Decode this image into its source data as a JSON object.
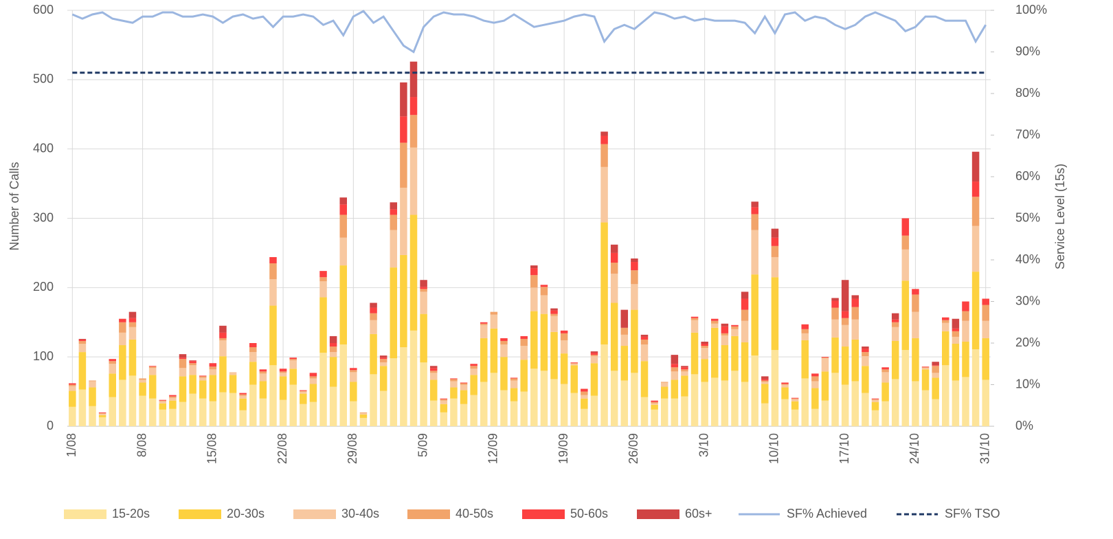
{
  "chart_data": {
    "type": "bar",
    "stacked": true,
    "ylabel": "Number of Calls",
    "y2label": "Service Level (15s)",
    "categories": [
      "1/08",
      null,
      null,
      null,
      null,
      null,
      null,
      "8/08",
      null,
      null,
      null,
      null,
      null,
      null,
      "15/08",
      null,
      null,
      null,
      null,
      null,
      null,
      "22/08",
      null,
      null,
      null,
      null,
      null,
      null,
      "29/08",
      null,
      null,
      null,
      null,
      null,
      null,
      "5/09",
      null,
      null,
      null,
      null,
      null,
      null,
      "12/09",
      null,
      null,
      null,
      null,
      null,
      null,
      "19/09",
      null,
      null,
      null,
      null,
      null,
      null,
      "26/09",
      null,
      null,
      null,
      null,
      null,
      null,
      "3/10",
      null,
      null,
      null,
      null,
      null,
      null,
      "10/10",
      null,
      null,
      null,
      null,
      null,
      null,
      "17/10",
      null,
      null,
      null,
      null,
      null,
      null,
      "24/10",
      null,
      null,
      null,
      null,
      null,
      null,
      "31/10"
    ],
    "ylim": [
      0,
      600
    ],
    "yticks": [
      0,
      100,
      200,
      300,
      400,
      500,
      600
    ],
    "y2lim": [
      0,
      100
    ],
    "y2ticks": [
      {
        "value": 0,
        "label": "0%"
      },
      {
        "value": 10,
        "label": "10%"
      },
      {
        "value": 20,
        "label": "20%"
      },
      {
        "value": 30,
        "label": "30%"
      },
      {
        "value": 40,
        "label": "40%"
      },
      {
        "value": 50,
        "label": "50%"
      },
      {
        "value": 60,
        "label": "60%"
      },
      {
        "value": 70,
        "label": "70%"
      },
      {
        "value": 80,
        "label": "80%"
      },
      {
        "value": 90,
        "label": "90%"
      },
      {
        "value": 100,
        "label": "100%"
      }
    ],
    "grid": true,
    "legend": "bottom",
    "series": [
      {
        "name": "15-20s",
        "color": "#fde49a",
        "values": [
          28,
          53,
          29,
          13,
          42,
          67,
          73,
          44,
          40,
          24,
          25,
          35,
          47,
          40,
          36,
          49,
          48,
          23,
          60,
          40,
          88,
          38,
          60,
          32,
          35,
          106,
          57,
          118,
          36,
          12,
          75,
          51,
          98,
          114,
          138,
          92,
          37,
          20,
          40,
          32,
          45,
          64,
          77,
          52,
          36,
          50,
          83,
          80,
          68,
          61,
          48,
          25,
          44,
          118,
          80,
          66,
          77,
          42,
          24,
          40,
          40,
          43,
          75,
          64,
          70,
          66,
          80,
          64,
          102,
          33,
          110,
          39,
          24,
          69,
          25,
          37,
          77,
          60,
          65,
          48,
          23,
          36,
          68,
          110,
          65,
          52,
          39,
          88,
          66,
          71,
          111,
          67
        ]
      },
      {
        "name": "20-30s",
        "color": "#fdd13f",
        "values": [
          23,
          54,
          27,
          3,
          34,
          50,
          52,
          19,
          34,
          9,
          12,
          37,
          27,
          26,
          38,
          52,
          26,
          17,
          33,
          25,
          86,
          34,
          23,
          15,
          26,
          80,
          43,
          114,
          28,
          5,
          58,
          36,
          131,
          133,
          167,
          70,
          30,
          12,
          16,
          20,
          29,
          63,
          64,
          48,
          19,
          46,
          83,
          82,
          68,
          44,
          40,
          15,
          47,
          176,
          98,
          50,
          91,
          52,
          7,
          17,
          27,
          30,
          60,
          33,
          72,
          51,
          50,
          57,
          117,
          28,
          105,
          17,
          12,
          55,
          30,
          42,
          51,
          55,
          60,
          39,
          12,
          27,
          55,
          100,
          62,
          30,
          31,
          49,
          53,
          51,
          112,
          60
        ]
      },
      {
        "name": "30-40s",
        "color": "#f8c8a0",
        "values": [
          7,
          12,
          9,
          2,
          14,
          18,
          18,
          4,
          10,
          3,
          4,
          12,
          14,
          4,
          8,
          23,
          4,
          4,
          14,
          11,
          38,
          5,
          12,
          3,
          8,
          23,
          7,
          40,
          14,
          2,
          20,
          5,
          54,
          97,
          97,
          32,
          10,
          5,
          9,
          8,
          9,
          19,
          20,
          18,
          11,
          20,
          34,
          27,
          23,
          19,
          2,
          5,
          10,
          80,
          42,
          16,
          37,
          24,
          2,
          6,
          12,
          6,
          18,
          16,
          6,
          14,
          10,
          31,
          64,
          3,
          29,
          4,
          3,
          10,
          10,
          19,
          26,
          31,
          29,
          14,
          3,
          15,
          20,
          45,
          38,
          2,
          7,
          12,
          10,
          30,
          66,
          25
        ]
      },
      {
        "name": "40-50s",
        "color": "#f2a46a",
        "values": [
          2,
          4,
          1,
          1,
          4,
          15,
          7,
          2,
          2,
          1,
          2,
          13,
          3,
          2,
          4,
          3,
          0,
          2,
          7,
          3,
          23,
          2,
          2,
          1,
          3,
          6,
          8,
          33,
          3,
          1,
          10,
          5,
          22,
          65,
          47,
          4,
          3,
          2,
          3,
          2,
          4,
          2,
          4,
          5,
          3,
          10,
          18,
          12,
          3,
          10,
          1,
          5,
          2,
          33,
          16,
          10,
          20,
          7,
          2,
          1,
          6,
          3,
          3,
          3,
          4,
          3,
          4,
          16,
          23,
          2,
          16,
          1,
          1,
          6,
          7,
          1,
          17,
          10,
          18,
          6,
          1,
          4,
          7,
          20,
          25,
          1,
          10,
          4,
          8,
          14,
          42,
          23
        ]
      },
      {
        "name": "50-60s",
        "color": "#fc4040",
        "values": [
          2,
          2,
          0,
          1,
          3,
          5,
          6,
          0,
          1,
          1,
          2,
          2,
          3,
          1,
          5,
          8,
          0,
          2,
          6,
          3,
          9,
          4,
          2,
          1,
          5,
          9,
          5,
          15,
          3,
          0,
          8,
          2,
          8,
          38,
          26,
          3,
          4,
          1,
          1,
          1,
          3,
          2,
          0,
          4,
          1,
          4,
          10,
          3,
          5,
          4,
          1,
          4,
          3,
          12,
          14,
          0,
          12,
          4,
          2,
          0,
          5,
          3,
          2,
          3,
          3,
          10,
          2,
          16,
          10,
          2,
          12,
          2,
          1,
          7,
          4,
          1,
          10,
          10,
          12,
          5,
          1,
          3,
          4,
          25,
          8,
          1,
          1,
          4,
          4,
          14,
          22,
          9
        ]
      },
      {
        "name": "60s+",
        "color": "#d04444",
        "values": [
          0,
          1,
          0,
          0,
          0,
          0,
          9,
          0,
          0,
          0,
          0,
          5,
          1,
          0,
          0,
          10,
          0,
          0,
          0,
          0,
          0,
          0,
          0,
          0,
          0,
          0,
          10,
          10,
          0,
          0,
          7,
          3,
          10,
          49,
          51,
          10,
          3,
          0,
          0,
          0,
          0,
          0,
          0,
          0,
          0,
          0,
          4,
          0,
          3,
          0,
          0,
          0,
          2,
          6,
          12,
          26,
          5,
          3,
          0,
          0,
          13,
          2,
          0,
          3,
          0,
          4,
          0,
          10,
          8,
          4,
          13,
          0,
          0,
          0,
          0,
          0,
          4,
          45,
          5,
          3,
          0,
          0,
          9,
          0,
          0,
          0,
          5,
          0,
          14,
          0,
          43,
          0
        ]
      },
      {
        "name": "SF% Achieved",
        "type": "line",
        "axis": "y2",
        "color": "#9bb6e0",
        "style": "solid",
        "values": [
          99,
          98,
          99,
          99.5,
          98,
          97.5,
          97,
          98.5,
          98.5,
          99.5,
          99.5,
          98.5,
          98.5,
          99,
          98.5,
          97,
          98.5,
          99,
          98,
          98.5,
          96,
          98.5,
          98.5,
          99,
          98.5,
          96.5,
          97.5,
          94,
          98.5,
          99.8,
          97,
          98.5,
          95,
          91.5,
          90,
          96,
          98.5,
          99.5,
          99,
          99,
          98.5,
          97.5,
          97,
          97.5,
          99,
          97.5,
          96,
          96.5,
          97,
          97.5,
          98.5,
          99,
          98.5,
          92.5,
          95.5,
          96.5,
          95.5,
          97.5,
          99.5,
          99,
          98,
          98.5,
          97.5,
          98,
          97.5,
          97.5,
          97.5,
          97,
          94.5,
          98.5,
          94.5,
          99,
          99.5,
          97.5,
          98.5,
          98,
          96.5,
          95.5,
          96.5,
          98.5,
          99.5,
          98.5,
          97.5,
          95,
          96,
          98.5,
          98.5,
          97.5,
          97.5,
          97.5,
          92.5,
          96.5
        ]
      },
      {
        "name": "SF% TSO",
        "type": "line",
        "axis": "y2",
        "color": "#1f3864",
        "style": "dashed",
        "values": [
          85,
          85,
          85,
          85,
          85,
          85,
          85,
          85,
          85,
          85,
          85,
          85,
          85,
          85,
          85,
          85,
          85,
          85,
          85,
          85,
          85,
          85,
          85,
          85,
          85,
          85,
          85,
          85,
          85,
          85,
          85,
          85,
          85,
          85,
          85,
          85,
          85,
          85,
          85,
          85,
          85,
          85,
          85,
          85,
          85,
          85,
          85,
          85,
          85,
          85,
          85,
          85,
          85,
          85,
          85,
          85,
          85,
          85,
          85,
          85,
          85,
          85,
          85,
          85,
          85,
          85,
          85,
          85,
          85,
          85,
          85,
          85,
          85,
          85,
          85,
          85,
          85,
          85,
          85,
          85,
          85,
          85,
          85,
          85,
          85,
          85,
          85,
          85,
          85,
          85,
          85,
          85
        ]
      }
    ]
  }
}
